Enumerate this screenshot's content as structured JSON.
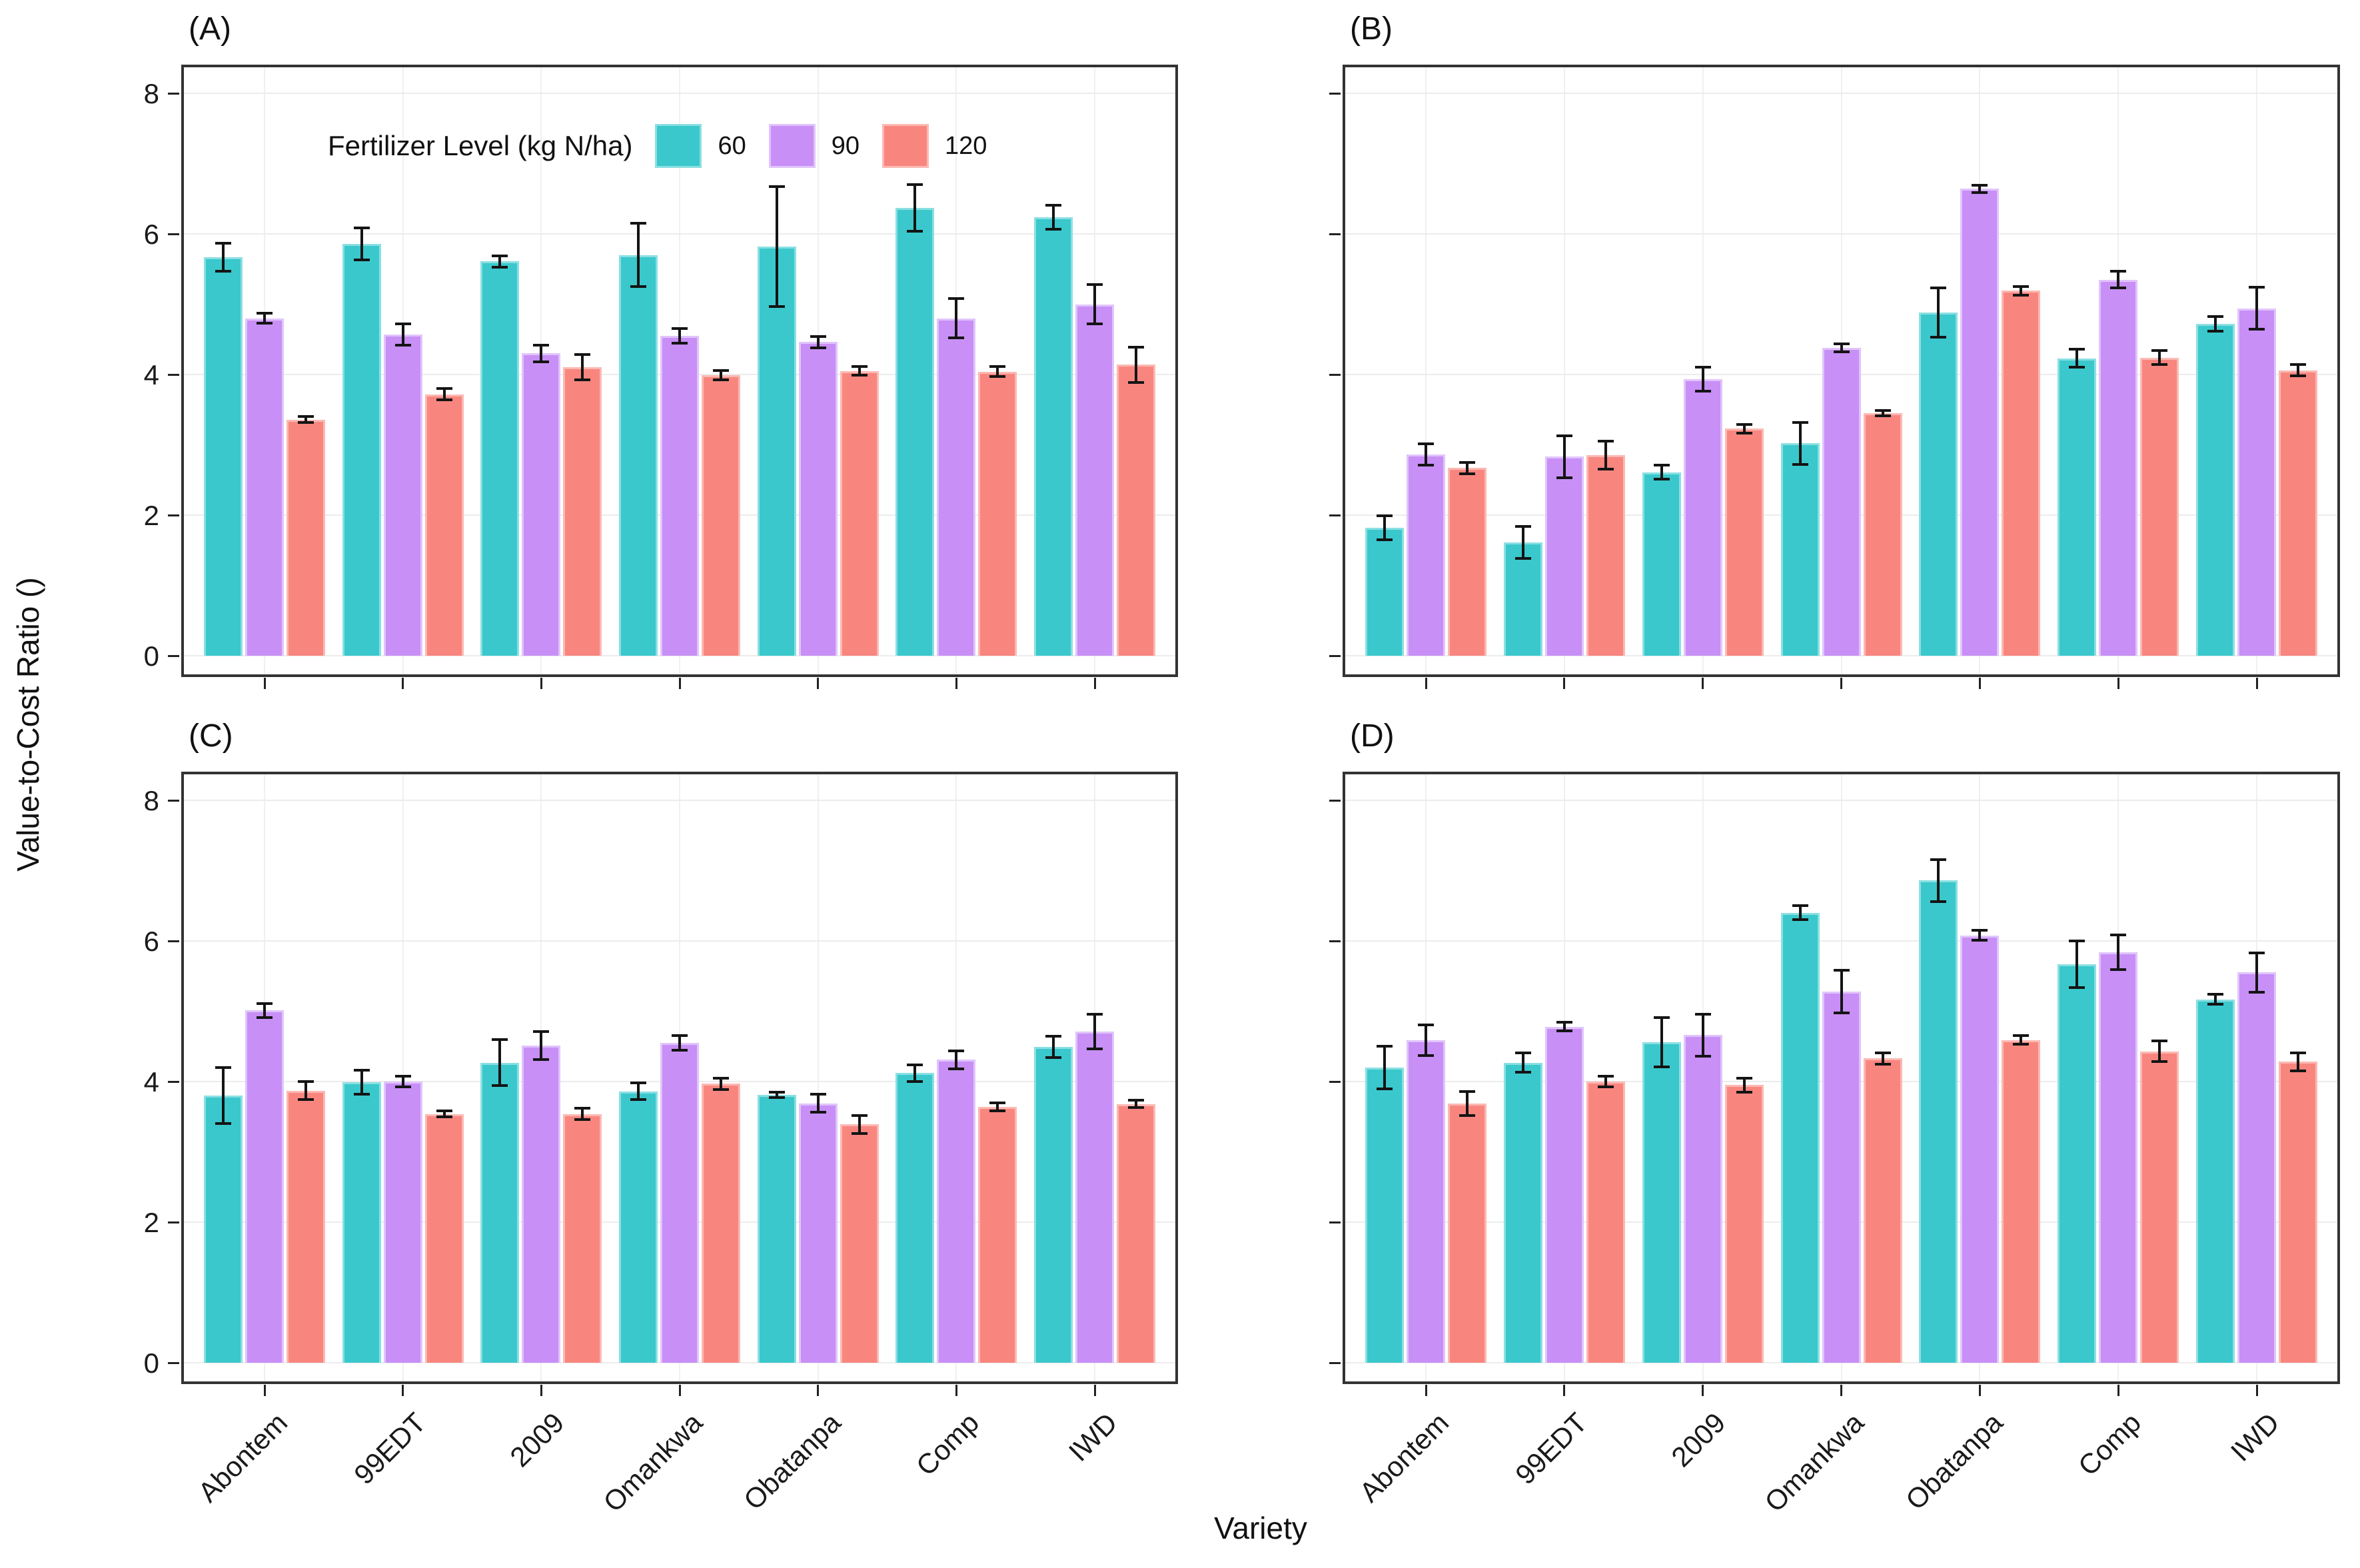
{
  "figure": {
    "y_axis_title": "Value-to-Cost Ratio ()",
    "x_axis_title": "Variety",
    "y_ticks": [
      0,
      2,
      4,
      6,
      8
    ],
    "categories": [
      "Abontem",
      "99EDT",
      "2009",
      "Omankwa",
      "Obatanpa",
      "Comp",
      "IWD"
    ],
    "legend": {
      "title": "Fertilizer Level (kg N/ha)",
      "entries": [
        {
          "label": "60",
          "color": "#3AC8CC",
          "edge": "#8ADFE2"
        },
        {
          "label": "90",
          "color": "#C88FF6",
          "edge": "#E0C4FB"
        },
        {
          "label": "120",
          "color": "#F8867F",
          "edge": "#FBB9B3"
        }
      ]
    }
  },
  "chart_data": [
    {
      "type": "bar",
      "panel_label": "(A)",
      "categories": [
        "Abontem",
        "99EDT",
        "2009",
        "Omankwa",
        "Obatanpa",
        "Comp",
        "IWD"
      ],
      "ylabel": "Value-to-Cost Ratio ()",
      "xlabel": "Variety",
      "ylim": [
        0,
        8.4
      ],
      "grid": "major-horizontal-and-category-vertical",
      "legend_position": "top-inside",
      "series": [
        {
          "name": "60",
          "values": [
            5.67,
            5.86,
            5.61,
            5.7,
            5.82,
            6.37,
            6.24
          ],
          "errors": [
            0.2,
            0.23,
            0.08,
            0.45,
            0.85,
            0.33,
            0.17
          ]
        },
        {
          "name": "90",
          "values": [
            4.8,
            4.57,
            4.3,
            4.55,
            4.46,
            4.8,
            5.0
          ],
          "errors": [
            0.07,
            0.15,
            0.12,
            0.1,
            0.08,
            0.28,
            0.28
          ]
        },
        {
          "name": "120",
          "values": [
            3.36,
            3.72,
            4.1,
            3.99,
            4.05,
            4.04,
            4.14
          ],
          "errors": [
            0.04,
            0.08,
            0.18,
            0.07,
            0.06,
            0.07,
            0.25
          ]
        }
      ]
    },
    {
      "type": "bar",
      "panel_label": "(B)",
      "categories": [
        "Abontem",
        "99EDT",
        "2009",
        "Omankwa",
        "Obatanpa",
        "Comp",
        "IWD"
      ],
      "ylim": [
        0,
        8.4
      ],
      "series": [
        {
          "name": "60",
          "values": [
            1.82,
            1.61,
            2.61,
            3.02,
            4.88,
            4.23,
            4.72
          ],
          "errors": [
            0.17,
            0.23,
            0.1,
            0.3,
            0.35,
            0.13,
            0.1
          ]
        },
        {
          "name": "90",
          "values": [
            2.86,
            2.83,
            3.93,
            4.38,
            6.64,
            5.35,
            4.94
          ],
          "errors": [
            0.15,
            0.3,
            0.17,
            0.06,
            0.05,
            0.12,
            0.3
          ]
        },
        {
          "name": "120",
          "values": [
            2.67,
            2.85,
            3.23,
            3.45,
            5.19,
            4.24,
            4.06
          ],
          "errors": [
            0.08,
            0.2,
            0.06,
            0.04,
            0.06,
            0.1,
            0.08
          ]
        }
      ]
    },
    {
      "type": "bar",
      "panel_label": "(C)",
      "categories": [
        "Abontem",
        "99EDT",
        "2009",
        "Omankwa",
        "Obatanpa",
        "Comp",
        "IWD"
      ],
      "ylim": [
        0,
        8.4
      ],
      "series": [
        {
          "name": "60",
          "values": [
            3.8,
            3.99,
            4.27,
            3.86,
            3.81,
            4.12,
            4.49
          ],
          "errors": [
            0.4,
            0.17,
            0.33,
            0.12,
            0.04,
            0.12,
            0.15
          ]
        },
        {
          "name": "90",
          "values": [
            5.01,
            4.0,
            4.51,
            4.55,
            3.69,
            4.31,
            4.71
          ],
          "errors": [
            0.1,
            0.08,
            0.2,
            0.1,
            0.13,
            0.13,
            0.25
          ]
        },
        {
          "name": "120",
          "values": [
            3.87,
            3.54,
            3.54,
            3.97,
            3.39,
            3.64,
            3.68
          ],
          "errors": [
            0.13,
            0.04,
            0.08,
            0.08,
            0.13,
            0.06,
            0.05
          ]
        }
      ]
    },
    {
      "type": "bar",
      "panel_label": "(D)",
      "categories": [
        "Abontem",
        "99EDT",
        "2009",
        "Omankwa",
        "Obatanpa",
        "Comp",
        "IWD"
      ],
      "ylim": [
        0,
        8.4
      ],
      "series": [
        {
          "name": "60",
          "values": [
            4.2,
            4.27,
            4.56,
            6.4,
            6.86,
            5.67,
            5.17
          ],
          "errors": [
            0.3,
            0.14,
            0.35,
            0.1,
            0.3,
            0.33,
            0.07
          ]
        },
        {
          "name": "90",
          "values": [
            4.59,
            4.78,
            4.66,
            5.28,
            6.08,
            5.84,
            5.55
          ],
          "errors": [
            0.22,
            0.06,
            0.3,
            0.3,
            0.07,
            0.25,
            0.28
          ]
        },
        {
          "name": "120",
          "values": [
            3.69,
            4.0,
            3.95,
            4.33,
            4.59,
            4.43,
            4.28
          ],
          "errors": [
            0.17,
            0.08,
            0.1,
            0.08,
            0.06,
            0.15,
            0.13
          ]
        }
      ]
    }
  ]
}
